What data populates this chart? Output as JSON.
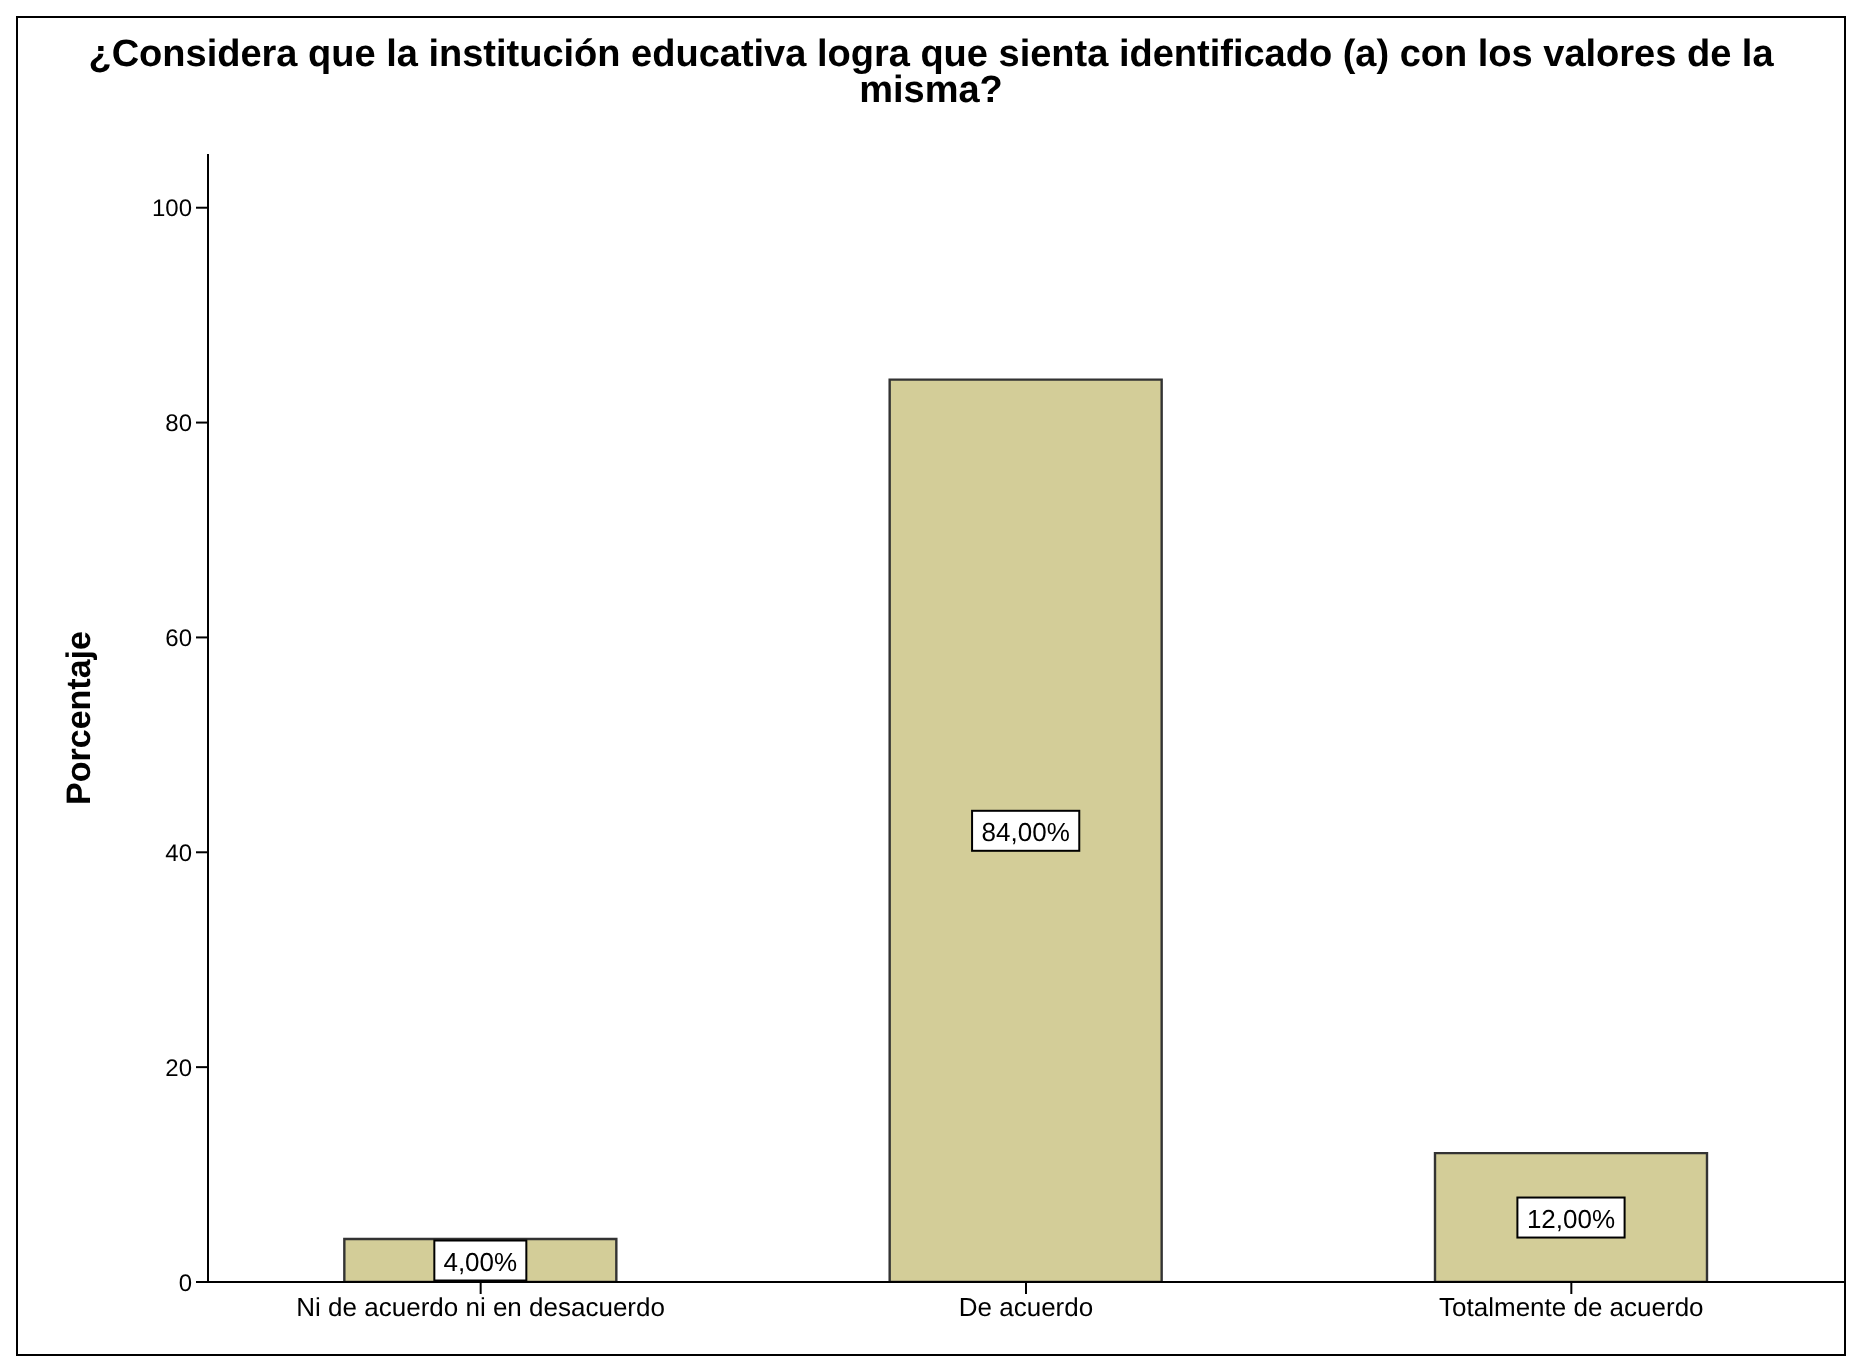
{
  "chart_data": {
    "type": "bar",
    "title": "¿Considera que la institución educativa logra que sienta identificado (a) con los valores de la misma?",
    "ylabel": "Porcentaje",
    "categories": [
      "Ni de acuerdo ni en desacuerdo",
      "De acuerdo",
      "Totalmente de acuerdo"
    ],
    "values": [
      4,
      84,
      12
    ],
    "color": "#d3cd98",
    "value_labels": [
      "4,00%",
      "84,00%",
      "12,00%"
    ],
    "ylim": [
      0,
      105
    ],
    "yticks": [
      0,
      20,
      40,
      60,
      80,
      100
    ],
    "grid": false,
    "legend": false
  }
}
